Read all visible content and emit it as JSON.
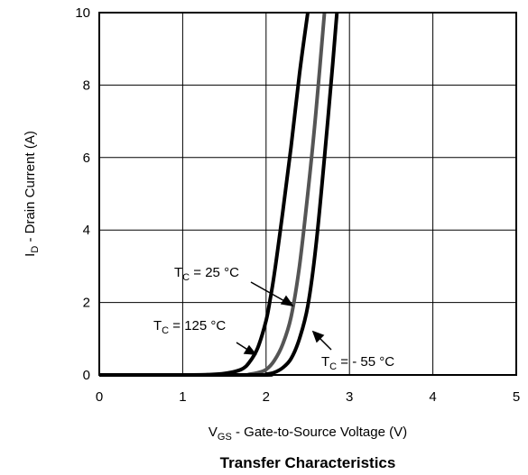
{
  "chart_data": {
    "type": "line",
    "title": "Transfer Characteristics",
    "xlabel": {
      "main": "V",
      "sub": "GS",
      "rest": " - Gate-to-Source Voltage (V)"
    },
    "ylabel": {
      "main": "I",
      "sub": "D",
      "rest": " - Drain Current (A)"
    },
    "xlim": [
      0,
      5
    ],
    "ylim": [
      0,
      10
    ],
    "xticks": [
      "0",
      "1",
      "2",
      "3",
      "4",
      "5"
    ],
    "yticks": [
      "0",
      "2",
      "4",
      "6",
      "8",
      "10"
    ],
    "grid": true,
    "series": [
      {
        "name": "TC = 125 °C",
        "color": "#000000",
        "points": [
          [
            0.0,
            0.0
          ],
          [
            1.0,
            0.0
          ],
          [
            1.3,
            0.01
          ],
          [
            1.5,
            0.04
          ],
          [
            1.7,
            0.15
          ],
          [
            1.8,
            0.35
          ],
          [
            1.9,
            0.75
          ],
          [
            2.0,
            1.5
          ],
          [
            2.05,
            2.1
          ],
          [
            2.1,
            2.8
          ],
          [
            2.2,
            4.5
          ],
          [
            2.3,
            6.3
          ],
          [
            2.4,
            8.3
          ],
          [
            2.5,
            10.0
          ]
        ]
      },
      {
        "name": "TC = 25 °C",
        "color": "#555555",
        "points": [
          [
            0.0,
            0.0
          ],
          [
            1.6,
            0.0
          ],
          [
            1.8,
            0.02
          ],
          [
            1.9,
            0.06
          ],
          [
            2.0,
            0.15
          ],
          [
            2.1,
            0.4
          ],
          [
            2.2,
            0.85
          ],
          [
            2.3,
            1.6
          ],
          [
            2.4,
            3.0
          ],
          [
            2.5,
            5.0
          ],
          [
            2.6,
            7.3
          ],
          [
            2.7,
            10.0
          ]
        ]
      },
      {
        "name": "TC = - 55 °C",
        "color": "#000000",
        "points": [
          [
            0.0,
            0.0
          ],
          [
            1.9,
            0.0
          ],
          [
            2.0,
            0.02
          ],
          [
            2.1,
            0.07
          ],
          [
            2.2,
            0.2
          ],
          [
            2.3,
            0.45
          ],
          [
            2.4,
            1.0
          ],
          [
            2.5,
            1.9
          ],
          [
            2.6,
            3.6
          ],
          [
            2.7,
            6.0
          ],
          [
            2.8,
            8.6
          ],
          [
            2.85,
            10.0
          ]
        ]
      }
    ],
    "annotations": [
      {
        "main": "T",
        "sub": "C",
        "rest": " = 25 °C"
      },
      {
        "main": "T",
        "sub": "C",
        "rest": " = 125 °C"
      },
      {
        "main": "T",
        "sub": "C",
        "rest": " = - 55 °C"
      }
    ]
  }
}
